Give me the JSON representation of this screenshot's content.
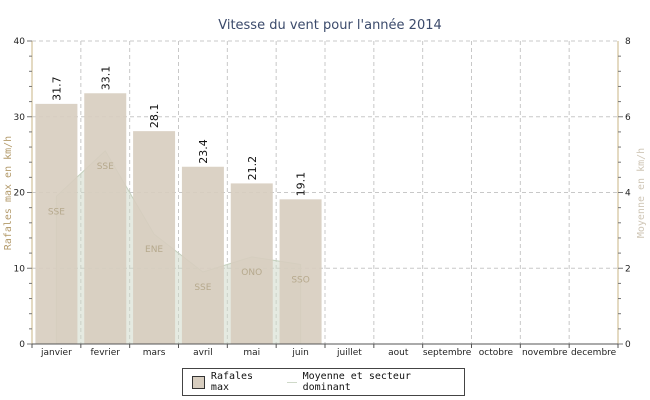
{
  "chart_data": {
    "type": "bar",
    "title": "Vitesse du vent pour l'année 2014",
    "categories": [
      "janvier",
      "fevrier",
      "mars",
      "avril",
      "mai",
      "juin",
      "juillet",
      "aout",
      "septembre",
      "octobre",
      "novembre",
      "decembre"
    ],
    "ylabel": "Rafales max en km/h",
    "y2label": "Moyenne en km/h",
    "ylim": [
      0,
      40
    ],
    "y2lim": [
      0,
      8
    ],
    "yticks": [
      "0",
      "10",
      "20",
      "30",
      "40"
    ],
    "y2ticks": [
      "0",
      "2",
      "4",
      "6",
      "8"
    ],
    "grid": true,
    "series": [
      {
        "name": "Rafales max",
        "type": "bar",
        "axis": "left",
        "color": "#d7cdbf",
        "values": [
          31.7,
          33.1,
          28.1,
          23.4,
          21.2,
          19.1,
          null,
          null,
          null,
          null,
          null,
          null
        ],
        "labels": [
          "31.7",
          "33.1",
          "28.1",
          "23.4",
          "21.2",
          "19.1"
        ]
      },
      {
        "name": "Moyenne et secteur dominant",
        "type": "area",
        "axis": "right",
        "color": "#cfd9c9",
        "values": [
          3.9,
          5.1,
          2.9,
          1.9,
          2.3,
          2.1,
          null,
          null,
          null,
          null,
          null,
          null
        ],
        "sectors": [
          "SSE",
          "SSE",
          "ENE",
          "SSE",
          "ONO",
          "SSO"
        ]
      }
    ],
    "legend_position": "bottom-center"
  },
  "colors": {
    "grid": "#c8c8c8",
    "axis_left": "#c9b484",
    "axis_right": "#c9b484"
  }
}
